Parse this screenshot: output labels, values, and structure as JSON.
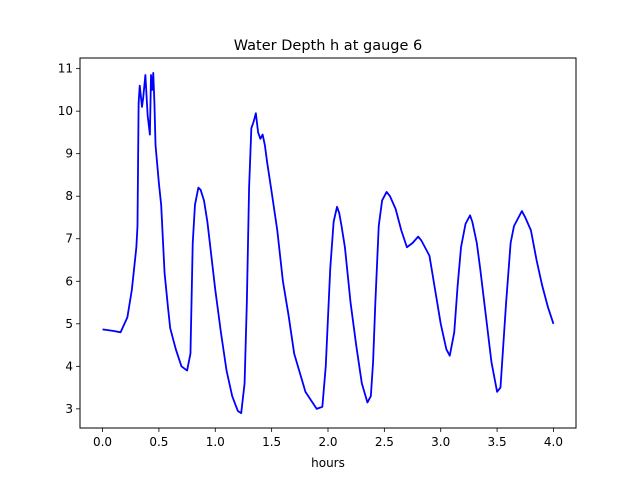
{
  "chart_data": {
    "type": "line",
    "title": "Water Depth h at gauge 6",
    "xlabel": "hours",
    "ylabel": "",
    "xlim": [
      -0.2,
      4.2
    ],
    "ylim": [
      2.55,
      11.25
    ],
    "xticks": [
      0.0,
      0.5,
      1.0,
      1.5,
      2.0,
      2.5,
      3.0,
      3.5,
      4.0
    ],
    "xtick_labels": [
      "0.0",
      "0.5",
      "1.0",
      "1.5",
      "2.0",
      "2.5",
      "3.0",
      "3.5",
      "4.0"
    ],
    "yticks": [
      3,
      4,
      5,
      6,
      7,
      8,
      9,
      10,
      11
    ],
    "ytick_labels": [
      "3",
      "4",
      "5",
      "6",
      "7",
      "8",
      "9",
      "10",
      "11"
    ],
    "grid": false,
    "series": [
      {
        "color": "#0000ff",
        "x": [
          0.0,
          0.1,
          0.16,
          0.22,
          0.26,
          0.3,
          0.31,
          0.32,
          0.33,
          0.35,
          0.36,
          0.38,
          0.4,
          0.42,
          0.43,
          0.44,
          0.45,
          0.46,
          0.47,
          0.5,
          0.52,
          0.55,
          0.58,
          0.6,
          0.65,
          0.7,
          0.75,
          0.78,
          0.8,
          0.82,
          0.85,
          0.87,
          0.9,
          0.93,
          1.0,
          1.05,
          1.1,
          1.15,
          1.2,
          1.23,
          1.26,
          1.28,
          1.3,
          1.32,
          1.34,
          1.36,
          1.38,
          1.4,
          1.42,
          1.44,
          1.46,
          1.5,
          1.55,
          1.6,
          1.65,
          1.7,
          1.8,
          1.9,
          1.95,
          1.98,
          2.02,
          2.05,
          2.08,
          2.1,
          2.12,
          2.15,
          2.2,
          2.25,
          2.3,
          2.35,
          2.38,
          2.4,
          2.42,
          2.45,
          2.48,
          2.52,
          2.55,
          2.6,
          2.65,
          2.7,
          2.75,
          2.8,
          2.83,
          2.88,
          2.9,
          2.95,
          3.0,
          3.05,
          3.08,
          3.12,
          3.15,
          3.18,
          3.22,
          3.26,
          3.28,
          3.32,
          3.35,
          3.4,
          3.45,
          3.5,
          3.53,
          3.55,
          3.58,
          3.62,
          3.65,
          3.68,
          3.72,
          3.75,
          3.8,
          3.85,
          3.9,
          3.95,
          4.0
        ],
        "y": [
          4.87,
          4.83,
          4.8,
          5.15,
          5.8,
          6.8,
          7.3,
          10.2,
          10.6,
          10.1,
          10.3,
          10.85,
          9.9,
          9.45,
          10.85,
          10.5,
          10.9,
          10.2,
          9.2,
          8.3,
          7.8,
          6.2,
          5.4,
          4.9,
          4.4,
          4.0,
          3.9,
          4.3,
          6.9,
          7.8,
          8.2,
          8.15,
          7.9,
          7.4,
          5.8,
          4.8,
          3.9,
          3.3,
          2.95,
          2.9,
          3.6,
          5.5,
          8.2,
          9.6,
          9.75,
          9.95,
          9.5,
          9.35,
          9.45,
          9.2,
          8.8,
          8.1,
          7.2,
          6.0,
          5.2,
          4.3,
          3.4,
          3.0,
          3.05,
          4.0,
          6.3,
          7.4,
          7.75,
          7.6,
          7.3,
          6.8,
          5.5,
          4.5,
          3.6,
          3.15,
          3.3,
          4.1,
          5.5,
          7.3,
          7.9,
          8.1,
          8.0,
          7.7,
          7.2,
          6.8,
          6.9,
          7.05,
          6.95,
          6.7,
          6.6,
          5.8,
          5.0,
          4.4,
          4.25,
          4.8,
          5.9,
          6.8,
          7.35,
          7.55,
          7.4,
          6.9,
          6.3,
          5.2,
          4.1,
          3.4,
          3.5,
          4.3,
          5.5,
          6.9,
          7.3,
          7.45,
          7.65,
          7.5,
          7.2,
          6.5,
          5.9,
          5.4,
          5.0
        ]
      }
    ]
  }
}
